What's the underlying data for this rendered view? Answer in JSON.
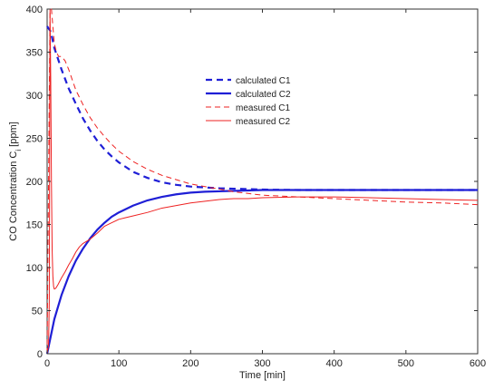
{
  "chart_data": {
    "type": "line",
    "xlabel": "Time [min]",
    "ylabel": "CO Concentration C",
    "ylabel_subscript": "i",
    "ylabel_unit": " [ppm]",
    "xlim": [
      0,
      600
    ],
    "ylim": [
      0,
      400
    ],
    "xticks": [
      0,
      100,
      200,
      300,
      400,
      500,
      600
    ],
    "yticks": [
      0,
      50,
      100,
      150,
      200,
      250,
      300,
      350,
      400
    ],
    "grid": false,
    "legend_position": "center-top",
    "series": [
      {
        "name": "calculated C1",
        "color": "#1f1fd6",
        "style": "dashed",
        "width": 2.2,
        "x": [
          0,
          5,
          10,
          20,
          30,
          40,
          50,
          60,
          70,
          80,
          90,
          100,
          120,
          140,
          160,
          180,
          200,
          220,
          240,
          260,
          280,
          300,
          350,
          400,
          450,
          500,
          550,
          600
        ],
        "y": [
          380,
          374,
          355,
          330,
          308,
          290,
          273,
          259,
          247,
          237,
          229,
          222,
          211,
          204,
          199,
          196,
          194,
          193,
          192,
          191.5,
          191,
          190.5,
          190,
          190,
          190,
          190,
          190,
          190
        ]
      },
      {
        "name": "calculated C2",
        "color": "#1f1fd6",
        "style": "solid",
        "width": 2.2,
        "x": [
          0,
          5,
          10,
          20,
          30,
          40,
          50,
          60,
          70,
          80,
          90,
          100,
          120,
          140,
          160,
          180,
          200,
          220,
          240,
          260,
          280,
          300,
          350,
          400,
          450,
          500,
          550,
          600
        ],
        "y": [
          0,
          20,
          40,
          68,
          90,
          108,
          122,
          134,
          144,
          152,
          159,
          164,
          172,
          178,
          182,
          185,
          187,
          188,
          188.5,
          189,
          189.5,
          190,
          190,
          190,
          190,
          190,
          190,
          190
        ]
      },
      {
        "name": "measured C1",
        "color": "#ee2222",
        "style": "dashed",
        "width": 1,
        "x": [
          0,
          2,
          4,
          6,
          8,
          10,
          13,
          16,
          20,
          25,
          30,
          35,
          40,
          50,
          60,
          70,
          80,
          90,
          100,
          120,
          140,
          160,
          180,
          200,
          220,
          240,
          260,
          280,
          300,
          350,
          400,
          450,
          500,
          550,
          600
        ],
        "y": [
          0,
          200,
          395,
          400,
          380,
          360,
          350,
          345,
          345,
          340,
          330,
          318,
          306,
          289,
          274,
          262,
          252,
          243,
          235,
          223,
          214,
          207,
          202,
          197,
          194,
          191,
          188,
          186,
          184,
          182,
          180,
          178,
          176,
          175,
          173
        ]
      },
      {
        "name": "measured C2",
        "color": "#ee2222",
        "style": "solid",
        "width": 1,
        "x": [
          0,
          2,
          3,
          4,
          5,
          6,
          7,
          8,
          9,
          10,
          12,
          15,
          20,
          25,
          30,
          35,
          40,
          45,
          50,
          60,
          70,
          80,
          90,
          100,
          110,
          120,
          140,
          160,
          180,
          200,
          220,
          240,
          260,
          280,
          300,
          350,
          400,
          450,
          500,
          550,
          600
        ],
        "y": [
          0,
          10,
          60,
          400,
          320,
          200,
          120,
          90,
          78,
          75,
          76,
          80,
          88,
          95,
          103,
          110,
          118,
          124,
          128,
          133,
          140,
          148,
          152,
          156,
          158,
          160,
          164,
          169,
          172,
          175,
          177,
          179,
          180,
          180,
          181,
          182,
          182,
          181,
          180,
          179,
          178
        ]
      }
    ]
  }
}
